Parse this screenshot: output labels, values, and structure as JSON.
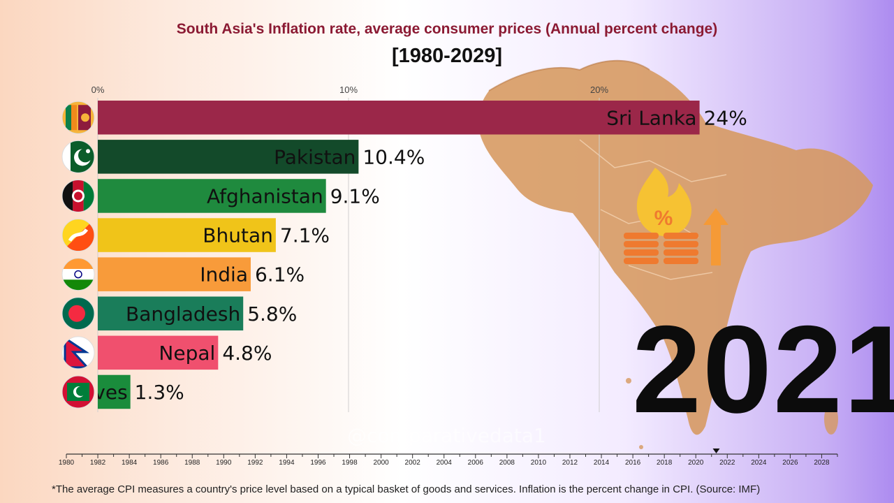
{
  "header": {
    "title": "South Asia's Inflation rate, average consumer prices (Annual percent change)",
    "subtitle": "[1980-2029]"
  },
  "current_year": "2021",
  "watermark": "@comparativedata1",
  "footnote": "*The average CPI measures a country's price level based on a typical basket of goods and services. Inflation is the percent change in CPI. (Source: IMF)",
  "colors": {
    "sri_lanka": "#9b2749",
    "pakistan": "#134a2a",
    "afghanistan": "#1f8a3e",
    "bhutan": "#f0c419",
    "india": "#f89b3a",
    "bangladesh": "#1a7d5a",
    "nepal": "#f0506e",
    "maldives": "#1a8c3c"
  },
  "chart_data": {
    "type": "bar",
    "orientation": "horizontal",
    "categories": [
      "Sri Lanka",
      "Pakistan",
      "Afghanistan",
      "Bhutan",
      "India",
      "Bangladesh",
      "Nepal",
      "Maldives"
    ],
    "bar_labels": [
      "Sri Lanka",
      "Pakistan",
      "Afghanistan",
      "Bhutan",
      "India",
      "Bangladesh",
      "Nepal",
      "ves"
    ],
    "values": [
      24,
      10.4,
      9.1,
      7.1,
      6.1,
      5.8,
      4.8,
      1.3
    ],
    "value_labels": [
      "24%",
      "10.4%",
      "9.1%",
      "7.1%",
      "6.1%",
      "5.8%",
      "4.8%",
      "1.3%"
    ],
    "xlim": [
      0,
      24
    ],
    "x_ticks": [
      0,
      10,
      20
    ],
    "x_tick_labels": [
      "0%",
      "10%",
      "20%"
    ],
    "grid": true,
    "timeline": {
      "start": 1980,
      "end": 2029,
      "current": 2021.3,
      "tick_labels": [
        "1980",
        "1982",
        "1984",
        "1986",
        "1988",
        "1990",
        "1992",
        "1994",
        "1996",
        "1998",
        "2000",
        "2002",
        "2004",
        "2006",
        "2008",
        "2010",
        "2012",
        "2014",
        "2016",
        "2018",
        "2020",
        "2022",
        "2024",
        "2026",
        "2028"
      ]
    }
  }
}
